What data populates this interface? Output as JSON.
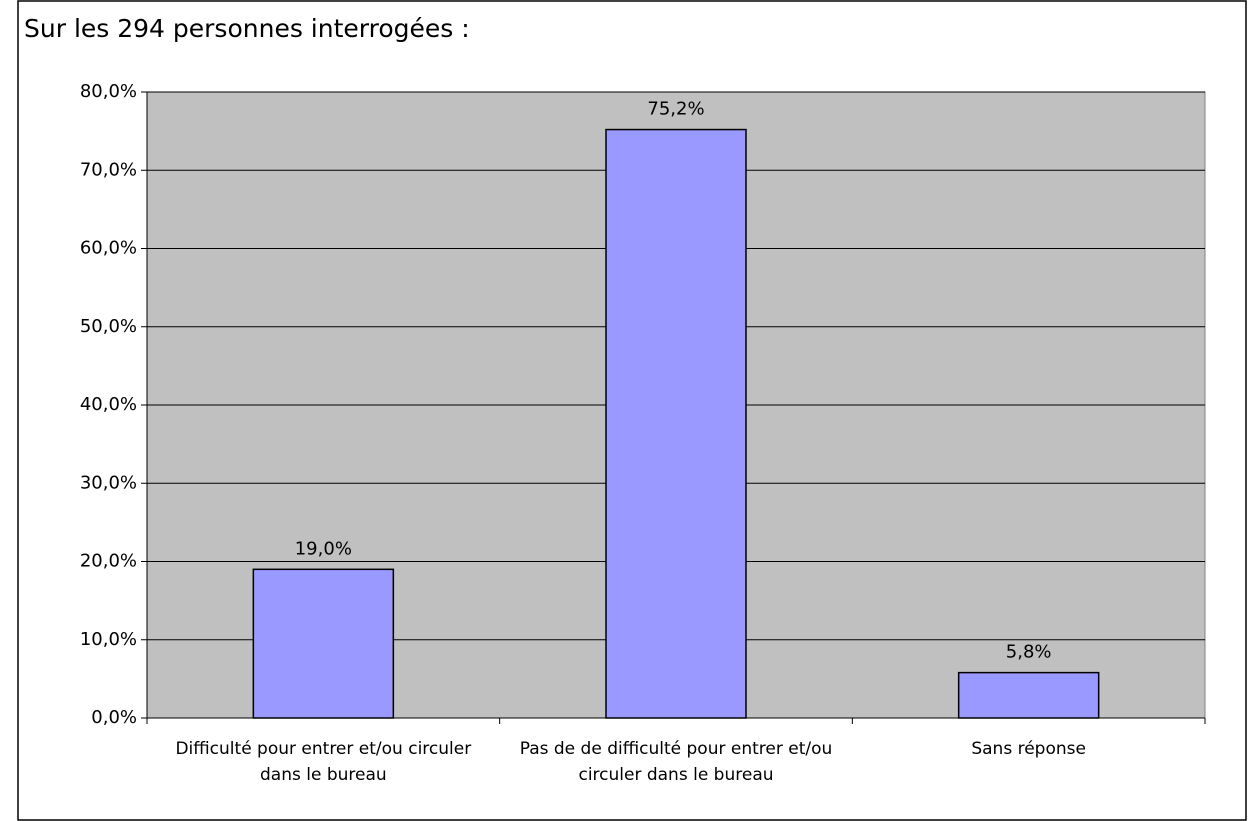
{
  "chart_data": {
    "type": "bar",
    "title": "Sur les 294 personnes interrogées :",
    "categories": [
      "Difficulté pour entrer et/ou circuler dans le bureau",
      "Pas de de difficulté pour entrer et/ou circuler dans le bureau",
      "Sans réponse"
    ],
    "values": [
      19.0,
      75.2,
      5.8
    ],
    "value_labels": [
      "19,0%",
      "75,2%",
      "5,8%"
    ],
    "color": "#9999ff",
    "ylim": [
      0,
      80
    ],
    "yticks": [
      {
        "value": 0,
        "label": "0,0%"
      },
      {
        "value": 10,
        "label": "10,0%"
      },
      {
        "value": 20,
        "label": "20,0%"
      },
      {
        "value": 30,
        "label": "30,0%"
      },
      {
        "value": 40,
        "label": "40,0%"
      },
      {
        "value": 50,
        "label": "50,0%"
      },
      {
        "value": 60,
        "label": "60,0%"
      },
      {
        "value": 70,
        "label": "70,0%"
      },
      {
        "value": 80,
        "label": "80,0%"
      }
    ],
    "grid": true
  }
}
